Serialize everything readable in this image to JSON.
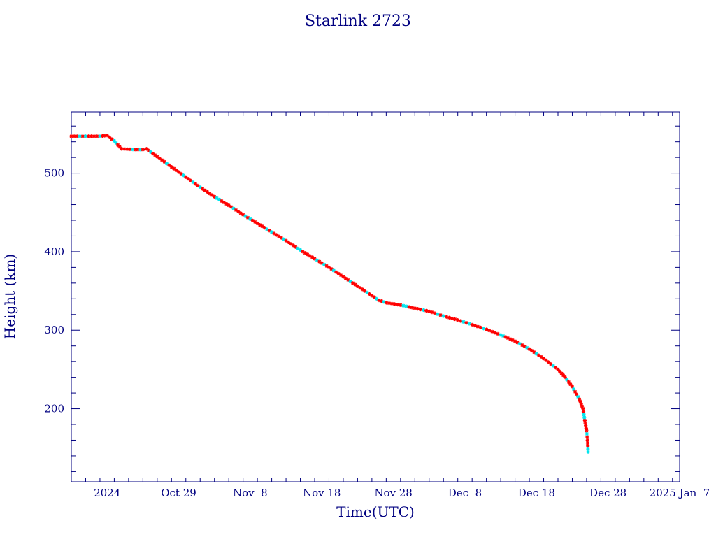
{
  "chart_data": {
    "type": "line",
    "title": "Starlink 2723",
    "xlabel": "Time(UTC)",
    "ylabel": "Height (km)",
    "x_axis": {
      "type": "date",
      "range": [
        "2024-10-14",
        "2025-01-07"
      ],
      "tick_labels": [
        {
          "date": "2024-10-19",
          "label": "2024"
        },
        {
          "date": "2024-10-29",
          "label": "Oct 29"
        },
        {
          "date": "2024-11-08",
          "label": "Nov  8"
        },
        {
          "date": "2024-11-18",
          "label": "Nov 18"
        },
        {
          "date": "2024-11-28",
          "label": "Nov 28"
        },
        {
          "date": "2024-12-08",
          "label": "Dec  8"
        },
        {
          "date": "2024-12-18",
          "label": "Dec 18"
        },
        {
          "date": "2024-12-28",
          "label": "Dec 28"
        },
        {
          "date": "2025-01-07",
          "label": "2025 Jan  7"
        }
      ]
    },
    "y_axis": {
      "range": [
        107,
        578
      ],
      "tick_values": [
        200,
        300,
        400,
        500
      ]
    },
    "grid": false,
    "series": [
      {
        "line_color": "#000000",
        "marker_colors": [
          "#ff0000",
          "#00e5ee"
        ],
        "points": [
          {
            "x": "2024-10-14",
            "y": 547
          },
          {
            "x": "2024-10-16",
            "y": 547
          },
          {
            "x": "2024-10-18",
            "y": 547
          },
          {
            "x": "2024-10-19",
            "y": 548
          },
          {
            "x": "2024-10-20",
            "y": 541
          },
          {
            "x": "2024-10-21",
            "y": 531
          },
          {
            "x": "2024-10-23",
            "y": 530
          },
          {
            "x": "2024-10-24",
            "y": 530
          },
          {
            "x": "2024-10-24T12:00",
            "y": 531
          },
          {
            "x": "2024-10-26",
            "y": 521
          },
          {
            "x": "2024-10-28",
            "y": 508
          },
          {
            "x": "2024-10-30",
            "y": 495
          },
          {
            "x": "2024-11-01",
            "y": 482
          },
          {
            "x": "2024-11-03",
            "y": 470
          },
          {
            "x": "2024-11-05",
            "y": 459
          },
          {
            "x": "2024-11-07",
            "y": 447
          },
          {
            "x": "2024-11-09",
            "y": 436
          },
          {
            "x": "2024-11-11",
            "y": 425
          },
          {
            "x": "2024-11-13",
            "y": 414
          },
          {
            "x": "2024-11-15",
            "y": 402
          },
          {
            "x": "2024-11-17",
            "y": 391
          },
          {
            "x": "2024-11-19",
            "y": 380
          },
          {
            "x": "2024-11-21",
            "y": 368
          },
          {
            "x": "2024-11-23",
            "y": 356
          },
          {
            "x": "2024-11-25",
            "y": 344
          },
          {
            "x": "2024-11-26",
            "y": 338
          },
          {
            "x": "2024-11-27",
            "y": 335
          },
          {
            "x": "2024-11-29",
            "y": 332
          },
          {
            "x": "2024-12-01",
            "y": 328
          },
          {
            "x": "2024-12-03",
            "y": 324
          },
          {
            "x": "2024-12-05",
            "y": 318
          },
          {
            "x": "2024-12-07",
            "y": 313
          },
          {
            "x": "2024-12-09",
            "y": 307
          },
          {
            "x": "2024-12-11",
            "y": 301
          },
          {
            "x": "2024-12-13",
            "y": 294
          },
          {
            "x": "2024-12-15",
            "y": 286
          },
          {
            "x": "2024-12-17",
            "y": 276
          },
          {
            "x": "2024-12-19",
            "y": 264
          },
          {
            "x": "2024-12-21",
            "y": 250
          },
          {
            "x": "2024-12-22",
            "y": 240
          },
          {
            "x": "2024-12-23",
            "y": 228
          },
          {
            "x": "2024-12-24",
            "y": 212
          },
          {
            "x": "2024-12-24T12:00",
            "y": 200
          },
          {
            "x": "2024-12-24T18:00",
            "y": 185
          },
          {
            "x": "2024-12-25",
            "y": 172
          },
          {
            "x": "2024-12-25T03:00",
            "y": 160
          },
          {
            "x": "2024-12-25T05:00",
            "y": 145
          }
        ]
      }
    ]
  }
}
